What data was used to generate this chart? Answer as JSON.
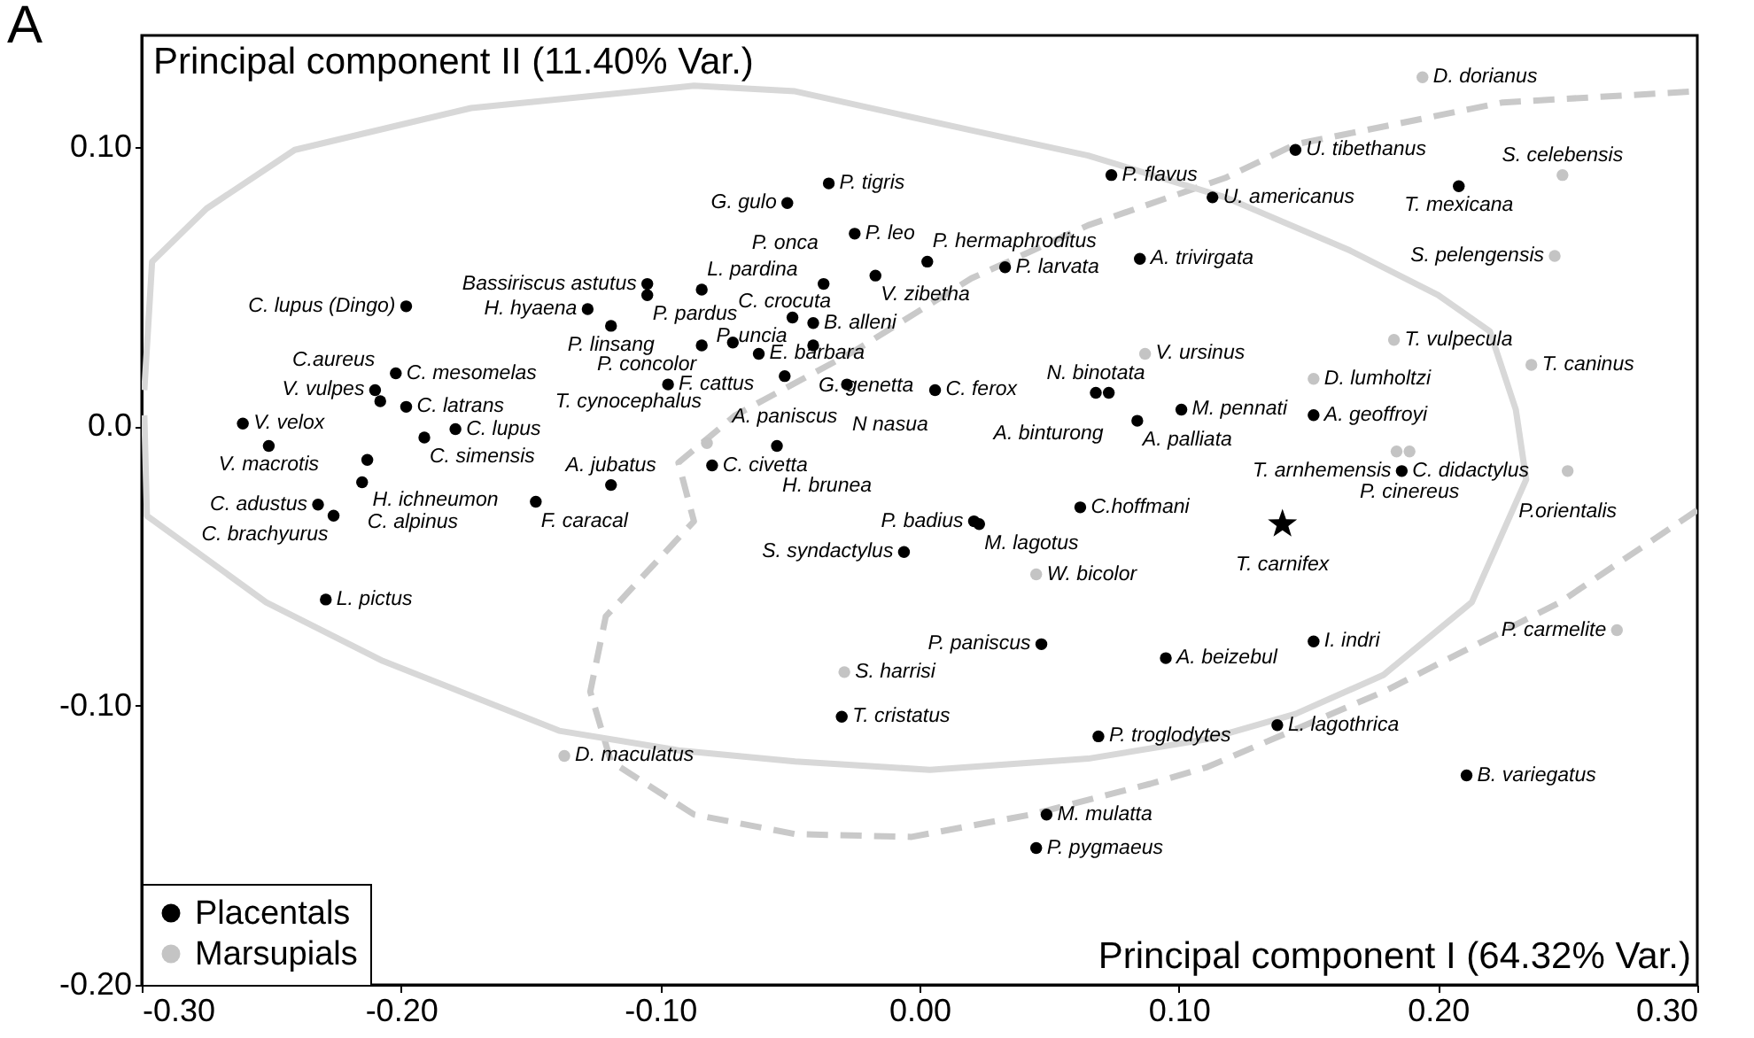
{
  "chart_data": {
    "type": "scatter",
    "title": "A",
    "xlabel": "Principal component I (64.32% Var.)",
    "ylabel": "Principal component II (11.40% Var.)",
    "xlim": [
      -0.3,
      0.3
    ],
    "ylim": [
      -0.2,
      0.14
    ],
    "xticks": [
      {
        "value": -0.3,
        "label": "-0.30"
      },
      {
        "value": -0.2,
        "label": "-0.20"
      },
      {
        "value": -0.1,
        "label": "-0.10"
      },
      {
        "value": 0,
        "label": "0.00"
      },
      {
        "value": 0.1,
        "label": "0.10"
      },
      {
        "value": 0.2,
        "label": "0.20"
      },
      {
        "value": 0.3,
        "label": "0.30"
      }
    ],
    "yticks": [
      {
        "value": 0.1,
        "label": "0.10"
      },
      {
        "value": 0,
        "label": "0.0"
      },
      {
        "value": -0.1,
        "label": "-0.10"
      },
      {
        "value": -0.2,
        "label": "-0.20"
      }
    ],
    "legend": "bottom left",
    "grid": false,
    "series": [
      {
        "type": "line",
        "color": "#d8d8d8",
        "line_style": "solid",
        "x": [
          -0.299,
          -0.296,
          -0.275,
          -0.241,
          -0.173,
          -0.087,
          -0.048,
          0.02,
          0.065,
          0.118,
          0.166,
          0.2,
          0.22,
          0.23,
          0.234,
          0.213,
          0.179,
          0.145,
          0.111,
          0.065,
          0.004,
          -0.048,
          -0.093,
          -0.139,
          -0.207,
          -0.252,
          -0.298,
          -0.299
        ],
        "values": [
          0.013,
          0.059,
          0.078,
          0.099,
          0.114,
          0.122,
          0.12,
          0.106,
          0.097,
          0.082,
          0.063,
          0.047,
          0.034,
          0.006,
          -0.019,
          -0.063,
          -0.089,
          -0.103,
          -0.112,
          -0.119,
          -0.123,
          -0.12,
          -0.116,
          -0.109,
          -0.084,
          -0.063,
          -0.032,
          0.004
        ]
      },
      {
        "type": "line",
        "color": "#c9c9c9",
        "line_style": "dashed",
        "x": [
          0.3,
          0.247,
          0.179,
          0.111,
          0.089,
          0.043,
          -0.003,
          -0.048,
          -0.087,
          -0.119,
          -0.127,
          -0.121,
          -0.087,
          -0.093,
          -0.071,
          -0.025,
          0.02,
          0.065,
          0.118,
          0.145,
          0.225,
          0.3
        ],
        "values": [
          -0.03,
          -0.063,
          -0.095,
          -0.122,
          -0.128,
          -0.139,
          -0.147,
          -0.146,
          -0.139,
          -0.12,
          -0.095,
          -0.068,
          -0.034,
          -0.013,
          0.004,
          0.027,
          0.053,
          0.072,
          0.089,
          0.101,
          0.116,
          0.12
        ]
      },
      {
        "name": "Placentals",
        "color": "#000000",
        "marker": "circle",
        "x": [
          -0.198,
          -0.261,
          -0.251,
          -0.202,
          -0.21,
          -0.208,
          -0.198,
          -0.191,
          -0.179,
          -0.213,
          -0.215,
          -0.232,
          -0.226,
          -0.229,
          -0.148,
          -0.105,
          -0.105,
          -0.084,
          -0.128,
          -0.119,
          -0.097,
          -0.084,
          -0.072,
          -0.062,
          -0.049,
          -0.041,
          -0.041,
          -0.052,
          -0.028,
          0.006,
          0.068,
          0.073,
          0.084,
          0.101,
          -0.037,
          -0.017,
          0.003,
          0.033,
          0.085,
          0.074,
          0.113,
          -0.035,
          -0.051,
          -0.025,
          -0.08,
          -0.119,
          -0.055,
          0.062,
          0.021,
          0.023,
          -0.006,
          0.047,
          0.095,
          -0.03,
          0.069,
          0.049,
          0.045,
          0.152,
          0.138,
          0.211,
          0.145,
          0.208,
          0.152,
          0.186
        ],
        "values": [
          0.043,
          0.001,
          -0.007,
          0.019,
          0.013,
          0.009,
          0.007,
          -0.004,
          -0.001,
          -0.012,
          -0.02,
          -0.028,
          -0.032,
          -0.062,
          -0.027,
          0.051,
          0.047,
          0.049,
          0.042,
          0.036,
          0.015,
          0.029,
          0.03,
          0.026,
          0.039,
          0.037,
          0.029,
          0.018,
          0.015,
          0.013,
          0.012,
          0.012,
          0.002,
          0.006,
          0.051,
          0.054,
          0.059,
          0.057,
          0.06,
          0.09,
          0.082,
          0.087,
          0.08,
          0.069,
          -0.014,
          -0.021,
          -0.007,
          -0.029,
          -0.034,
          -0.035,
          -0.045,
          -0.078,
          -0.083,
          -0.104,
          -0.111,
          -0.139,
          -0.151,
          -0.077,
          -0.107,
          -0.125,
          0.099,
          0.086,
          0.004,
          -0.016
        ]
      },
      {
        "name": "Marsupials",
        "color": "#c4c4c4",
        "marker": "circle",
        "x": [
          -0.082,
          0.045,
          -0.029,
          0.269,
          0.194,
          0.248,
          0.245,
          0.183,
          0.236,
          0.152,
          0.184,
          0.189,
          0.25,
          0.087,
          -0.137
        ],
        "values": [
          -0.006,
          -0.053,
          -0.088,
          -0.073,
          0.125,
          0.09,
          0.061,
          0.031,
          0.022,
          0.017,
          -0.009,
          -0.009,
          -0.016,
          0.026,
          -0.118
        ]
      },
      {
        "color": "#000000",
        "marker": "star",
        "x": [
          0.14
        ],
        "values": [
          -0.035
        ]
      }
    ],
    "annotations": [
      {
        "text": "C. lupus (Dingo)",
        "x": -0.198,
        "y": 0.043
      },
      {
        "text": "V. velox",
        "x": -0.261,
        "y": 0.001
      },
      {
        "text": "V. macrotis",
        "x": -0.251,
        "y": -0.007
      },
      {
        "text": "C. mesomelas",
        "x": -0.202,
        "y": 0.019
      },
      {
        "text": "V. vulpes",
        "x": -0.21,
        "y": 0.013
      },
      {
        "text": "C.aureus",
        "x": -0.208,
        "y": 0.009
      },
      {
        "text": "C. latrans",
        "x": -0.198,
        "y": 0.007
      },
      {
        "text": "C. simensis",
        "x": -0.191,
        "y": -0.004
      },
      {
        "text": "C. lupus",
        "x": -0.179,
        "y": -0.001
      },
      {
        "text": "H. ichneumon",
        "x": -0.213,
        "y": -0.012
      },
      {
        "text": "C. alpinus",
        "x": -0.215,
        "y": -0.02
      },
      {
        "text": "C. adustus",
        "x": -0.232,
        "y": -0.028
      },
      {
        "text": "C. brachyurus",
        "x": -0.226,
        "y": -0.032
      },
      {
        "text": "L. pictus",
        "x": -0.229,
        "y": -0.062
      },
      {
        "text": "F. caracal",
        "x": -0.148,
        "y": -0.027
      },
      {
        "text": "Bassiriscus astutus",
        "x": -0.105,
        "y": 0.051
      },
      {
        "text": "P. pardus",
        "x": -0.105,
        "y": 0.047
      },
      {
        "text": "L. pardina",
        "x": -0.084,
        "y": 0.049
      },
      {
        "text": "H. hyaena",
        "x": -0.128,
        "y": 0.042
      },
      {
        "text": "P. linsang",
        "x": -0.119,
        "y": 0.036
      },
      {
        "text": "F. cattus",
        "x": -0.097,
        "y": 0.015
      },
      {
        "text": "P. concolor",
        "x": -0.084,
        "y": 0.029
      },
      {
        "text": "C. crocuta",
        "x": -0.072,
        "y": 0.03
      },
      {
        "text": "E. barbara",
        "x": -0.062,
        "y": 0.026
      },
      {
        "text": "P. uncia",
        "x": -0.049,
        "y": 0.039
      },
      {
        "text": "B. alleni",
        "x": -0.041,
        "y": 0.037
      },
      {
        "text": "G. genetta",
        "x": -0.041,
        "y": 0.029
      },
      {
        "text": "A. paniscus",
        "x": -0.052,
        "y": 0.018
      },
      {
        "text": "N nasua",
        "x": -0.028,
        "y": 0.015
      },
      {
        "text": "C. ferox",
        "x": 0.006,
        "y": 0.013
      },
      {
        "text": "N. binotata",
        "x": 0.068,
        "y": 0.012
      },
      {
        "text": "A. binturong",
        "x": 0.073,
        "y": 0.012
      },
      {
        "text": "A. palliata",
        "x": 0.084,
        "y": 0.002
      },
      {
        "text": "M. pennati",
        "x": 0.101,
        "y": 0.006
      },
      {
        "text": "P. onca",
        "x": -0.037,
        "y": 0.051
      },
      {
        "text": "V. zibetha",
        "x": -0.017,
        "y": 0.054
      },
      {
        "text": "P. hermaphroditus",
        "x": 0.003,
        "y": 0.059
      },
      {
        "text": "P. larvata",
        "x": 0.033,
        "y": 0.057
      },
      {
        "text": "A. trivirgata",
        "x": 0.085,
        "y": 0.06
      },
      {
        "text": "P. flavus",
        "x": 0.074,
        "y": 0.09
      },
      {
        "text": "U. americanus",
        "x": 0.113,
        "y": 0.082
      },
      {
        "text": "P. tigris",
        "x": -0.035,
        "y": 0.087
      },
      {
        "text": "G. gulo",
        "x": -0.051,
        "y": 0.08
      },
      {
        "text": "P. leo",
        "x": -0.025,
        "y": 0.069
      },
      {
        "text": "C. civetta",
        "x": -0.08,
        "y": -0.014
      },
      {
        "text": "A. jubatus",
        "x": -0.119,
        "y": -0.021
      },
      {
        "text": "H. brunea",
        "x": -0.055,
        "y": -0.007
      },
      {
        "text": "C.hoffmani",
        "x": 0.062,
        "y": -0.029
      },
      {
        "text": "P. badius",
        "x": 0.021,
        "y": -0.034
      },
      {
        "text": "M. lagotus",
        "x": 0.023,
        "y": -0.035
      },
      {
        "text": "S. syndactylus",
        "x": -0.006,
        "y": -0.045
      },
      {
        "text": "P. paniscus",
        "x": 0.047,
        "y": -0.078
      },
      {
        "text": "A. beizebul",
        "x": 0.095,
        "y": -0.083
      },
      {
        "text": "T. cristatus",
        "x": -0.03,
        "y": -0.104
      },
      {
        "text": "P. troglodytes",
        "x": 0.069,
        "y": -0.111
      },
      {
        "text": "M. mulatta",
        "x": 0.049,
        "y": -0.139
      },
      {
        "text": "P. pygmaeus",
        "x": 0.045,
        "y": -0.151
      },
      {
        "text": "I. indri",
        "x": 0.152,
        "y": -0.077
      },
      {
        "text": "L. lagothrica",
        "x": 0.138,
        "y": -0.107
      },
      {
        "text": "B. variegatus",
        "x": 0.211,
        "y": -0.125
      },
      {
        "text": "U. tibethanus",
        "x": 0.145,
        "y": 0.099
      },
      {
        "text": "T. mexicana",
        "x": 0.208,
        "y": 0.086
      },
      {
        "text": "A. geoffroyi",
        "x": 0.152,
        "y": 0.004
      },
      {
        "text": "C. didactylus",
        "x": 0.186,
        "y": -0.016
      },
      {
        "text": "T. cynocephalus",
        "x": -0.082,
        "y": -0.006
      },
      {
        "text": "W. bicolor",
        "x": 0.045,
        "y": -0.053
      },
      {
        "text": "S. harrisi",
        "x": -0.029,
        "y": -0.088
      },
      {
        "text": "P. carmelite",
        "x": 0.269,
        "y": -0.073
      },
      {
        "text": "D. dorianus",
        "x": 0.194,
        "y": 0.125
      },
      {
        "text": "S. celebensis",
        "x": 0.248,
        "y": 0.09
      },
      {
        "text": "S. pelengensis",
        "x": 0.245,
        "y": 0.061
      },
      {
        "text": "T. vulpecula",
        "x": 0.183,
        "y": 0.031
      },
      {
        "text": "T. caninus",
        "x": 0.236,
        "y": 0.022
      },
      {
        "text": "D. lumholtzi",
        "x": 0.152,
        "y": 0.017
      },
      {
        "text": "T. arnhemensis",
        "x": 0.184,
        "y": -0.009
      },
      {
        "text": "P. cinereus",
        "x": 0.189,
        "y": -0.009
      },
      {
        "text": "P.orientalis",
        "x": 0.25,
        "y": -0.016
      },
      {
        "text": "V. ursinus",
        "x": 0.087,
        "y": 0.026
      },
      {
        "text": "D. maculatus",
        "x": -0.137,
        "y": -0.118
      },
      {
        "text": "T. carnifex",
        "x": 0.14,
        "y": -0.035
      }
    ]
  }
}
